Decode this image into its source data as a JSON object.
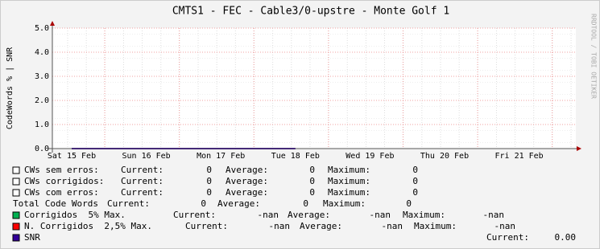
{
  "chart_data": {
    "type": "line",
    "title": "CMTS1 - FEC - Cable3/0-upstre - Monte Golf 1",
    "ylabel": "CodeWords % | SNR",
    "watermark": "RRDTOOL / TOBI OETIKER",
    "categories": [
      "Sat 15 Feb",
      "Sun 16 Feb",
      "Mon 17 Feb",
      "Tue 18 Feb",
      "Wed 19 Feb",
      "Thu 20 Feb",
      "Fri 21 Feb"
    ],
    "ylim": [
      0,
      5
    ],
    "yticks": [
      {
        "value": 0,
        "label": "0.0"
      },
      {
        "value": 1,
        "label": "1.0"
      },
      {
        "value": 2,
        "label": "2.0"
      },
      {
        "value": 3,
        "label": "3.0"
      },
      {
        "value": 4,
        "label": "4.0"
      },
      {
        "value": 5,
        "label": "5.0"
      }
    ],
    "grid": true,
    "series": [
      {
        "name": "SNR",
        "color": "#330099",
        "values": [
          0,
          0,
          0,
          0,
          null,
          null,
          null
        ]
      }
    ],
    "legend": [
      {
        "name": "CWs sem erros:",
        "color": "#ffffff",
        "stats": [
          {
            "label": "Current:",
            "value": 0
          },
          {
            "label": "Average:",
            "value": 0
          },
          {
            "label": "Maximum:",
            "value": 0
          }
        ]
      },
      {
        "name": "CWs corrigidos:",
        "color": "#ffffff",
        "stats": [
          {
            "label": "Current:",
            "value": 0
          },
          {
            "label": "Average:",
            "value": 0
          },
          {
            "label": "Maximum:",
            "value": 0
          }
        ]
      },
      {
        "name": "CWs com erros:",
        "color": "#ffffff",
        "stats": [
          {
            "label": "Current:",
            "value": 0
          },
          {
            "label": "Average:",
            "value": 0
          },
          {
            "label": "Maximum:",
            "value": 0
          }
        ]
      },
      {
        "name": "Total Code Words",
        "stats": [
          {
            "label": "Current:",
            "value": 0
          },
          {
            "label": "Average:",
            "value": 0
          },
          {
            "label": "Maximum:",
            "value": 0
          }
        ]
      },
      {
        "name": "Corrigidos  5% Max.",
        "color": "#00b050",
        "stats": [
          {
            "label": "Current:",
            "value": "-nan"
          },
          {
            "label": "Average:",
            "value": "-nan"
          },
          {
            "label": "Maximum:",
            "value": "-nan"
          }
        ]
      },
      {
        "name": "N. Corrigidos  2,5% Max.",
        "color": "#ff0000",
        "stats": [
          {
            "label": "Current:",
            "value": "-nan"
          },
          {
            "label": "Average:",
            "value": "-nan"
          },
          {
            "label": "Maximum:",
            "value": "-nan"
          }
        ]
      },
      {
        "name": "SNR",
        "color": "#330099",
        "stats": [
          {
            "label": "Current:",
            "value": {
              "value": 0,
              "label": "0.00"
            }
          }
        ]
      }
    ]
  }
}
